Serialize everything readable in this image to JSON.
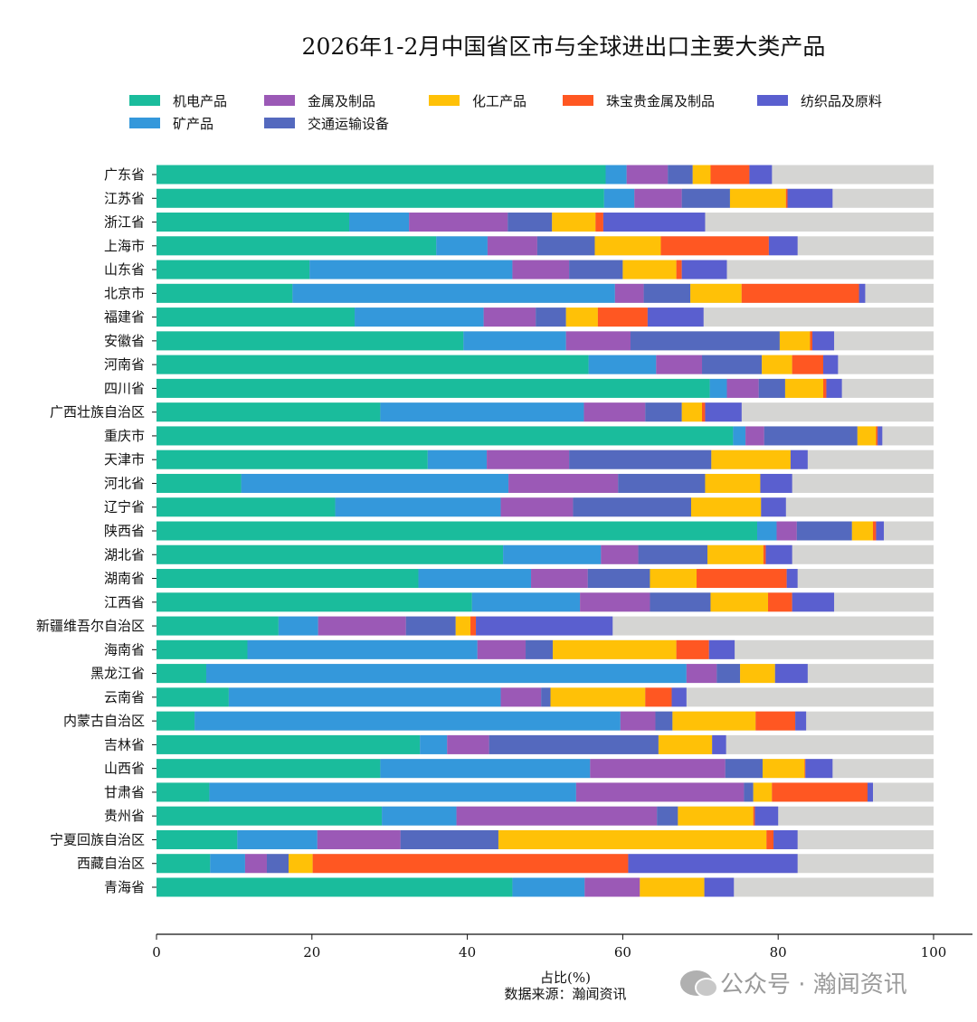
{
  "chart_data": {
    "type": "bar",
    "orientation": "horizontal",
    "stacked": true,
    "title": "2026年1-2月中国省区市与全球进出口主要大类产品",
    "xlabel": "占比(%)",
    "source": "数据来源：瀚闻资讯",
    "xlim": [
      0,
      100
    ],
    "xticks": [
      "0",
      "20",
      "40",
      "60",
      "80",
      "100"
    ],
    "grid": false,
    "legend_position": "top",
    "categories": [
      "广东省",
      "江苏省",
      "浙江省",
      "上海市",
      "山东省",
      "北京市",
      "福建省",
      "安徽省",
      "河南省",
      "四川省",
      "广西壮族自治区",
      "重庆市",
      "天津市",
      "河北省",
      "辽宁省",
      "陕西省",
      "湖北省",
      "湖南省",
      "江西省",
      "新疆维吾尔自治区",
      "海南省",
      "黑龙江省",
      "云南省",
      "内蒙古自治区",
      "吉林省",
      "山西省",
      "甘肃省",
      "贵州省",
      "宁夏回族自治区",
      "西藏自治区",
      "青海省"
    ],
    "series": [
      {
        "name": "机电产品",
        "color": "#1abc9c",
        "values": [
          57.8,
          57.6,
          24.8,
          36.0,
          19.7,
          17.5,
          25.5,
          39.5,
          55.6,
          71.2,
          28.8,
          74.2,
          34.9,
          10.9,
          23.0,
          77.3,
          44.6,
          33.7,
          40.6,
          15.7,
          11.7,
          6.4,
          9.3,
          4.9,
          33.9,
          28.8,
          6.8,
          29.0,
          10.4,
          6.9,
          45.8
        ]
      },
      {
        "name": "矿产品",
        "color": "#3498db",
        "values": [
          2.7,
          3.9,
          7.7,
          6.6,
          26.1,
          41.5,
          16.6,
          13.2,
          8.7,
          2.2,
          26.2,
          1.6,
          7.6,
          34.4,
          21.3,
          2.5,
          12.6,
          14.5,
          13.9,
          5.1,
          29.6,
          61.8,
          35.0,
          54.8,
          3.5,
          27.0,
          47.2,
          9.6,
          10.3,
          4.5,
          9.3
        ]
      },
      {
        "name": "金属及制品",
        "color": "#9b59b6",
        "values": [
          5.3,
          6.1,
          12.7,
          6.4,
          7.3,
          3.7,
          6.7,
          8.3,
          5.9,
          4.1,
          7.9,
          2.4,
          10.6,
          14.1,
          9.3,
          2.6,
          4.8,
          7.3,
          9.0,
          11.3,
          6.2,
          3.9,
          5.2,
          4.5,
          5.4,
          17.4,
          21.6,
          25.8,
          10.7,
          2.8,
          7.1
        ]
      },
      {
        "name": "交通运输设备",
        "color": "#5469be",
        "values": [
          3.2,
          6.2,
          5.7,
          7.4,
          6.9,
          6.0,
          3.9,
          19.2,
          7.7,
          3.4,
          4.7,
          12.0,
          18.3,
          11.2,
          15.2,
          7.1,
          8.9,
          8.0,
          7.8,
          6.4,
          3.5,
          3.0,
          1.2,
          2.2,
          21.8,
          4.8,
          1.2,
          2.7,
          12.6,
          2.8,
          0
        ]
      },
      {
        "name": "化工产品",
        "color": "#ffc107",
        "values": [
          2.3,
          7.2,
          5.6,
          8.5,
          6.9,
          6.6,
          4.1,
          3.9,
          3.9,
          4.9,
          2.6,
          2.4,
          10.2,
          7.1,
          9.0,
          2.7,
          7.2,
          6.0,
          7.4,
          1.9,
          15.9,
          4.5,
          12.2,
          10.7,
          6.9,
          5.4,
          2.4,
          9.7,
          34.5,
          3.1,
          8.3
        ]
      },
      {
        "name": "珠宝贵金属及制品",
        "color": "#ff5722",
        "values": [
          5.0,
          0.2,
          1.0,
          13.9,
          0.7,
          15.1,
          6.4,
          0.3,
          4.0,
          0.4,
          0.4,
          0.2,
          0,
          0,
          0,
          0.4,
          0.3,
          11.6,
          3.1,
          0.7,
          4.2,
          0,
          3.4,
          5.1,
          0,
          0.1,
          12.3,
          0.2,
          0.9,
          40.6,
          0
        ]
      },
      {
        "name": "纺织品及原料",
        "color": "#5a5fcf",
        "values": [
          2.9,
          5.8,
          13.1,
          3.7,
          5.8,
          0.8,
          7.2,
          2.8,
          1.9,
          2.0,
          4.7,
          0.6,
          2.2,
          4.1,
          3.2,
          1.0,
          3.4,
          1.4,
          5.4,
          17.6,
          3.3,
          4.2,
          1.9,
          1.4,
          1.8,
          3.5,
          0.7,
          3.0,
          3.1,
          21.8,
          3.8
        ]
      }
    ],
    "remainder_color": "#d5d5d3"
  },
  "watermark": "公众号 · 瀚闻资讯"
}
